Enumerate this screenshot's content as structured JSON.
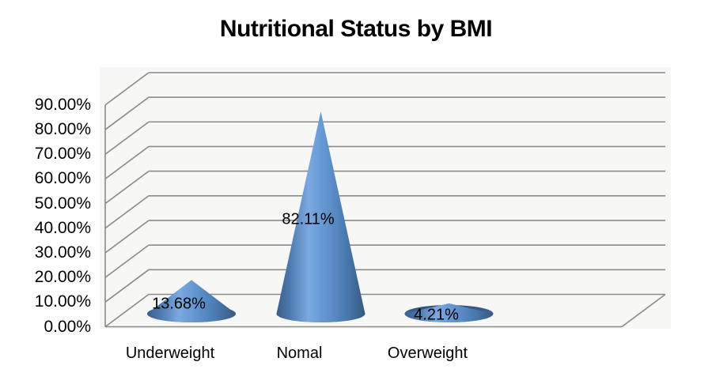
{
  "title": "Nutritional Status by BMI",
  "chart_data": {
    "type": "bar",
    "variant": "3d-cone",
    "title": "Nutritional Status by BMI",
    "categories": [
      "Underweight",
      "Nomal",
      "Overweight"
    ],
    "values": [
      13.68,
      82.11,
      4.21
    ],
    "data_labels": [
      "13.68%",
      "82.11%",
      "4.21%"
    ],
    "xlabel": "",
    "ylabel": "",
    "ylim": [
      0,
      90
    ],
    "ytick_step": 10,
    "yticks": [
      "0.00%",
      "10.00%",
      "20.00%",
      "30.00%",
      "40.00%",
      "50.00%",
      "60.00%",
      "70.00%",
      "80.00%",
      "90.00%"
    ],
    "grid": true,
    "legend": false,
    "colors": {
      "cone_main": "#4f81bd",
      "cone_highlight": "#7ba9e0",
      "cone_dark": "#37597e",
      "cone_base_dark": "#2f5076",
      "cone_base_mid": "#4d7cb3",
      "gridline": "#8a8a8a",
      "plot_bg": "#f7f7f6",
      "text": "#000000"
    }
  }
}
